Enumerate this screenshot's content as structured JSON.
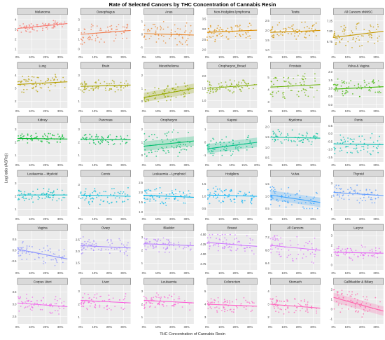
{
  "chart_data": {
    "type": "scatter",
    "title": "Rate of Selected Cancers by THC Concentration of Cannabis Resin",
    "xlabel": "THC Concentration of Cannabis Resin",
    "ylabel": "Log(ratio (ASRs))",
    "layout": "6x6 facet grid",
    "grid": true,
    "panels": [
      {
        "name": "Melanoma",
        "xticks": [
          "0%",
          "10%",
          "20%",
          "30%"
        ],
        "xlim": [
          0,
          35
        ],
        "yticks": [
          "1",
          "2",
          "3",
          "4"
        ],
        "ylim": [
          0.5,
          4.5
        ],
        "trend": {
          "start": 3.1,
          "end": 3.6
        },
        "cluster": [
          2.6,
          3.9
        ],
        "color": "#F8766D",
        "band": false
      },
      {
        "name": "Oesophagus",
        "xticks": [
          "0%",
          "10%",
          "20%",
          "30%"
        ],
        "xlim": [
          0,
          35
        ],
        "yticks": [
          "0",
          "1",
          "2",
          "3"
        ],
        "ylim": [
          -0.5,
          3.5
        ],
        "trend": {
          "start": 1.5,
          "end": 1.9
        },
        "cluster": [
          0.5,
          3.0
        ],
        "color": "#F07F53",
        "band": false
      },
      {
        "name": "Anus",
        "xticks": [
          "0%",
          "10%",
          "20%",
          "30%"
        ],
        "xlim": [
          0,
          35
        ],
        "yticks": [
          "-1",
          "0",
          "1"
        ],
        "ylim": [
          -1.5,
          1.5
        ],
        "trend": {
          "start": 0.05,
          "end": -0.05
        },
        "cluster": [
          -0.8,
          1.2
        ],
        "color": "#E8862C",
        "band": false
      },
      {
        "name": "Non-Hodgkins lymphoma",
        "xticks": [
          "0%",
          "10%",
          "20%",
          "30%"
        ],
        "xlim": [
          0,
          35
        ],
        "yticks": [
          "2.0",
          "2.5",
          "3.0",
          "3.5"
        ],
        "ylim": [
          1.8,
          3.7
        ],
        "trend": {
          "start": 2.85,
          "end": 2.95
        },
        "cluster": [
          2.4,
          3.5
        ],
        "color": "#DE8C00",
        "band": false
      },
      {
        "name": "Testis",
        "xticks": [
          "0%",
          "10%",
          "20%",
          "30%"
        ],
        "xlim": [
          0,
          35
        ],
        "yticks": [
          "1.0",
          "1.5",
          "2.0",
          "2.5"
        ],
        "ylim": [
          0.8,
          2.8
        ],
        "trend": {
          "start": 1.9,
          "end": 2.0
        },
        "cluster": [
          1.5,
          2.6
        ],
        "color": "#D29200",
        "band": false
      },
      {
        "name": "All Cancers xNMSC",
        "xticks": [
          "0%",
          "10%",
          "20%",
          "30%"
        ],
        "xlim": [
          0,
          35
        ],
        "yticks": [
          "6.75",
          "7.00",
          "7.25"
        ],
        "ylim": [
          6.45,
          7.4
        ],
        "trend": {
          "start": 6.85,
          "end": 7.0
        },
        "cluster": [
          6.6,
          7.3
        ],
        "color": "#C59900",
        "band": false
      },
      {
        "name": "Lung",
        "xticks": [
          "0%",
          "10%",
          "20%",
          "30%"
        ],
        "xlim": [
          0,
          35
        ],
        "yticks": [
          "2",
          "3",
          "4"
        ],
        "ylim": [
          1.5,
          4.5
        ],
        "trend": {
          "start": 3.3,
          "end": 3.5
        },
        "cluster": [
          2.7,
          4.2
        ],
        "color": "#B79F00",
        "band": false
      },
      {
        "name": "Brain",
        "xticks": [
          "0%",
          "10%",
          "20%",
          "30%"
        ],
        "xlim": [
          0,
          35
        ],
        "yticks": [
          "1",
          "2",
          "3"
        ],
        "ylim": [
          0.5,
          3.5
        ],
        "trend": {
          "start": 2.15,
          "end": 2.25
        },
        "cluster": [
          1.7,
          2.8
        ],
        "color": "#A8A400",
        "band": false
      },
      {
        "name": "Mesothelioma",
        "xticks": [
          "0%",
          "10%",
          "20%",
          "30%"
        ],
        "xlim": [
          0,
          35
        ],
        "yticks": [
          "0",
          "1",
          "2"
        ],
        "ylim": [
          -0.5,
          2.5
        ],
        "trend": {
          "start": 0.3,
          "end": 1.0
        },
        "cluster": [
          0.0,
          1.4
        ],
        "color": "#96A900",
        "band": true
      },
      {
        "name": "Oropharynx_Broad",
        "xticks": [
          "0%",
          "10%",
          "20%",
          "30%"
        ],
        "xlim": [
          0,
          35
        ],
        "yticks": [
          "1.0",
          "1.5",
          "2.0"
        ],
        "ylim": [
          0.7,
          2.3
        ],
        "trend": {
          "start": 1.5,
          "end": 1.65
        },
        "cluster": [
          1.3,
          2.0
        ],
        "color": "#81AD00",
        "band": false
      },
      {
        "name": "Prostate",
        "xticks": [
          "0%",
          "10%",
          "20%",
          "30%"
        ],
        "xlim": [
          0,
          35
        ],
        "yticks": [
          "3",
          "4",
          "5"
        ],
        "ylim": [
          2.5,
          5.7
        ],
        "trend": {
          "start": 4.2,
          "end": 4.4
        },
        "cluster": [
          3.0,
          5.3
        ],
        "color": "#67B200",
        "band": false
      },
      {
        "name": "Vulva & Vagina",
        "xticks": [
          "0%",
          "10%",
          "20%",
          "30%"
        ],
        "xlim": [
          0,
          35
        ],
        "yticks": [
          "0.0",
          "0.5",
          "1.0",
          "1.5",
          "2.0"
        ],
        "ylim": [
          -0.2,
          2.2
        ],
        "trend": {
          "start": 0.95,
          "end": 1.1
        },
        "cluster": [
          0.5,
          1.8
        ],
        "color": "#3DB600",
        "band": false
      },
      {
        "name": "Kidney",
        "xticks": [
          "0%",
          "10%",
          "20%",
          "30%"
        ],
        "xlim": [
          0,
          35
        ],
        "yticks": [
          "1",
          "2",
          "3"
        ],
        "ylim": [
          0.5,
          3.5
        ],
        "trend": {
          "start": 2.3,
          "end": 2.25
        },
        "cluster": [
          1.9,
          2.8
        ],
        "color": "#00B92C",
        "band": false
      },
      {
        "name": "Pancreas",
        "xticks": [
          "0%",
          "10%",
          "20%",
          "30%"
        ],
        "xlim": [
          0,
          35
        ],
        "yticks": [
          "1",
          "2",
          "3"
        ],
        "ylim": [
          0.5,
          3.5
        ],
        "trend": {
          "start": 2.25,
          "end": 2.2
        },
        "cluster": [
          1.8,
          2.8
        ],
        "color": "#00BC52",
        "band": false
      },
      {
        "name": "Oropharynx",
        "xticks": [
          "0%",
          "10%",
          "20%",
          "30%"
        ],
        "xlim": [
          0,
          35
        ],
        "yticks": [
          "0",
          "1",
          "2"
        ],
        "ylim": [
          -0.5,
          2.5
        ],
        "trend": {
          "start": 0.7,
          "end": 1.1
        },
        "cluster": [
          -0.3,
          2.2
        ],
        "color": "#00BE6D",
        "band": true
      },
      {
        "name": "Kaposi",
        "xticks": [
          "0%",
          "5%",
          "10%",
          "15%",
          "20%"
        ],
        "xlim": [
          0,
          20
        ],
        "yticks": [
          "-1",
          "0",
          "1"
        ],
        "ylim": [
          -1.5,
          1.5
        ],
        "trend": {
          "start": -0.5,
          "end": 0.0
        },
        "cluster": [
          -1.0,
          0.8
        ],
        "color": "#00C086",
        "band": true
      },
      {
        "name": "Myeloma",
        "xticks": [
          "0%",
          "10%",
          "20%",
          "30%"
        ],
        "xlim": [
          0,
          35
        ],
        "yticks": [
          "0.5",
          "1.0",
          "1.5",
          "2.0"
        ],
        "ylim": [
          0.3,
          2.2
        ],
        "trend": {
          "start": 1.5,
          "end": 1.45
        },
        "cluster": [
          1.1,
          1.9
        ],
        "color": "#00C19C",
        "band": false
      },
      {
        "name": "Penis",
        "xticks": [
          "0%",
          "10%",
          "20%",
          "30%"
        ],
        "xlim": [
          0,
          35
        ],
        "yticks": [
          "-1.5",
          "-1.0",
          "-0.5",
          "0.0",
          "0.5"
        ],
        "ylim": [
          -1.8,
          0.7
        ],
        "trend": {
          "start": -0.65,
          "end": -0.7
        },
        "cluster": [
          -1.4,
          0.2
        ],
        "color": "#00C0B2",
        "band": false
      },
      {
        "name": "Leukaemia – Myeloid",
        "xticks": [
          "0%",
          "10%",
          "20%",
          "30%"
        ],
        "xlim": [
          0,
          35
        ],
        "yticks": [
          "1",
          "2",
          "3"
        ],
        "ylim": [
          0.5,
          3.5
        ],
        "trend": {
          "start": 2.1,
          "end": 2.1
        },
        "cluster": [
          1.4,
          2.6
        ],
        "color": "#00BEC6",
        "band": false
      },
      {
        "name": "Cervix",
        "xticks": [
          "0%",
          "10%",
          "20%",
          "30%"
        ],
        "xlim": [
          0,
          35
        ],
        "yticks": [
          "1",
          "2",
          "3"
        ],
        "ylim": [
          0.3,
          3.7
        ],
        "trend": {
          "start": 2.1,
          "end": 2.0
        },
        "cluster": [
          1.3,
          3.2
        ],
        "color": "#00BBDA",
        "band": false
      },
      {
        "name": "Leukaemia – Lymphoid",
        "xticks": [
          "0%",
          "10%",
          "20%",
          "30%"
        ],
        "xlim": [
          0,
          35
        ],
        "yticks": [
          "1.0",
          "1.5",
          "2.0",
          "2.5"
        ],
        "ylim": [
          0.8,
          2.8
        ],
        "trend": {
          "start": 1.85,
          "end": 1.75
        },
        "cluster": [
          1.3,
          2.4
        ],
        "color": "#00B6EB",
        "band": false
      },
      {
        "name": "Hodgkins",
        "xticks": [
          "0%",
          "10%",
          "20%",
          "30%"
        ],
        "xlim": [
          0,
          35
        ],
        "yticks": [
          "0.5",
          "1.0",
          "1.5"
        ],
        "ylim": [
          0.2,
          1.8
        ],
        "trend": {
          "start": 1.05,
          "end": 1.0
        },
        "cluster": [
          0.7,
          1.5
        ],
        "color": "#00B0F6",
        "band": false
      },
      {
        "name": "Vulva",
        "xticks": [
          "0%",
          "10%",
          "20%",
          "30%"
        ],
        "xlim": [
          0,
          35
        ],
        "yticks": [
          "0.5",
          "1.0",
          "1.5"
        ],
        "ylim": [
          0.2,
          1.8
        ],
        "trend": {
          "start": 1.05,
          "end": 0.75
        },
        "cluster": [
          0.5,
          1.5
        ],
        "color": "#35A2FF",
        "band": true
      },
      {
        "name": "Thyroid",
        "xticks": [
          "0%",
          "10%",
          "20%",
          "30%"
        ],
        "xlim": [
          0,
          35
        ],
        "yticks": [
          "1",
          "2",
          "3"
        ],
        "ylim": [
          0.5,
          3.5
        ],
        "trend": {
          "start": 2.3,
          "end": 2.05
        },
        "cluster": [
          1.5,
          3.0
        ],
        "color": "#619CFF",
        "band": false
      },
      {
        "name": "Vagina",
        "xticks": [
          "0%",
          "10%",
          "20%",
          "30%"
        ],
        "xlim": [
          0,
          35
        ],
        "yticks": [
          "-0.5",
          "0.0",
          "0.5"
        ],
        "ylim": [
          -0.9,
          0.9
        ],
        "trend": {
          "start": 0.05,
          "end": -0.4
        },
        "cluster": [
          -0.7,
          0.5
        ],
        "color": "#8B93FF",
        "band": false
      },
      {
        "name": "Ovary",
        "xticks": [
          "0%",
          "10%",
          "20%",
          "30%"
        ],
        "xlim": [
          0,
          35
        ],
        "yticks": [
          "1.5",
          "2.0",
          "2.5"
        ],
        "ylim": [
          1.2,
          2.9
        ],
        "trend": {
          "start": 2.25,
          "end": 2.15
        },
        "cluster": [
          1.8,
          2.7
        ],
        "color": "#A58AFF",
        "band": false
      },
      {
        "name": "Bladder",
        "xticks": [
          "0%",
          "10%",
          "20%",
          "30%"
        ],
        "xlim": [
          0,
          35
        ],
        "yticks": [
          "1",
          "2",
          "3"
        ],
        "ylim": [
          0.5,
          3.5
        ],
        "trend": {
          "start": 2.5,
          "end": 2.35
        },
        "cluster": [
          1.8,
          3.1
        ],
        "color": "#BC81FF",
        "band": false
      },
      {
        "name": "Breast",
        "xticks": [
          "0%",
          "10%",
          "20%",
          "30%"
        ],
        "xlim": [
          0,
          35
        ],
        "yticks": [
          "3.75",
          "4.00",
          "4.25",
          "4.50"
        ],
        "ylim": [
          3.6,
          4.6
        ],
        "trend": {
          "start": 4.3,
          "end": 4.2
        },
        "cluster": [
          3.9,
          4.5
        ],
        "color": "#CD79FF",
        "band": false
      },
      {
        "name": "All Cancers",
        "xticks": [
          "0%",
          "10%",
          "20%",
          "30%"
        ],
        "xlim": [
          0,
          35
        ],
        "yticks": [
          "6.4",
          "6.8",
          "7.2"
        ],
        "ylim": [
          6.2,
          7.4
        ],
        "trend": {
          "start": 6.95,
          "end": 6.8
        },
        "cluster": [
          6.4,
          7.3
        ],
        "color": "#DB72FB",
        "band": false
      },
      {
        "name": "Larynx",
        "xticks": [
          "0%",
          "10%",
          "20%",
          "30%"
        ],
        "xlim": [
          0,
          35
        ],
        "yticks": [
          "0",
          "1",
          "2",
          "3"
        ],
        "ylim": [
          -0.5,
          3.5
        ],
        "trend": {
          "start": 1.3,
          "end": 1.2
        },
        "cluster": [
          0.5,
          2.2
        ],
        "color": "#E76BF3",
        "band": false
      },
      {
        "name": "Corpus Uteri",
        "xticks": [
          "0%",
          "10%",
          "20%",
          "30%"
        ],
        "xlim": [
          0,
          35
        ],
        "yticks": [
          "2.5",
          "3.0",
          "3.5"
        ],
        "ylim": [
          2.2,
          3.8
        ],
        "trend": {
          "start": 3.05,
          "end": 2.9
        },
        "cluster": [
          2.6,
          3.5
        ],
        "color": "#F066E9",
        "band": false
      },
      {
        "name": "Liver",
        "xticks": [
          "0%",
          "10%",
          "20%",
          "30%"
        ],
        "xlim": [
          0,
          35
        ],
        "yticks": [
          "1",
          "2",
          "3"
        ],
        "ylim": [
          0.5,
          3.5
        ],
        "trend": {
          "start": 2.3,
          "end": 2.1
        },
        "cluster": [
          1.5,
          3.1
        ],
        "color": "#F863DF",
        "band": false
      },
      {
        "name": "Leukaemia",
        "xticks": [
          "0%",
          "10%",
          "20%",
          "30%"
        ],
        "xlim": [
          0,
          35
        ],
        "yticks": [
          "1",
          "2",
          "3"
        ],
        "ylim": [
          0.5,
          3.5
        ],
        "trend": {
          "start": 2.3,
          "end": 2.1
        },
        "cluster": [
          1.5,
          3.0
        ],
        "color": "#FC61D4",
        "band": false
      },
      {
        "name": "Colorectum",
        "xticks": [
          "0%",
          "10%",
          "20%",
          "30%"
        ],
        "xlim": [
          0,
          35
        ],
        "yticks": [
          "3",
          "4",
          "5"
        ],
        "ylim": [
          2.5,
          5.5
        ],
        "trend": {
          "start": 4.0,
          "end": 3.85
        },
        "cluster": [
          3.4,
          4.7
        ],
        "color": "#FF61C7",
        "band": false
      },
      {
        "name": "Stomach",
        "xticks": [
          "0%",
          "10%",
          "20%",
          "30%"
        ],
        "xlim": [
          0,
          35
        ],
        "yticks": [
          "2",
          "3",
          "4"
        ],
        "ylim": [
          1.5,
          4.5
        ],
        "trend": {
          "start": 3.0,
          "end": 2.7
        },
        "cluster": [
          2.2,
          3.8
        ],
        "color": "#FF62BA",
        "band": false
      },
      {
        "name": "Gallbladder & Biliary",
        "xticks": [
          "0%",
          "10%",
          "20%",
          "30%"
        ],
        "xlim": [
          0,
          35
        ],
        "yticks": [
          "-1",
          "0",
          "1",
          "2"
        ],
        "ylim": [
          -1.5,
          2.5
        ],
        "trend": {
          "start": 1.2,
          "end": -0.2
        },
        "cluster": [
          -0.8,
          2.0
        ],
        "color": "#FF65AC",
        "band": true
      }
    ]
  }
}
